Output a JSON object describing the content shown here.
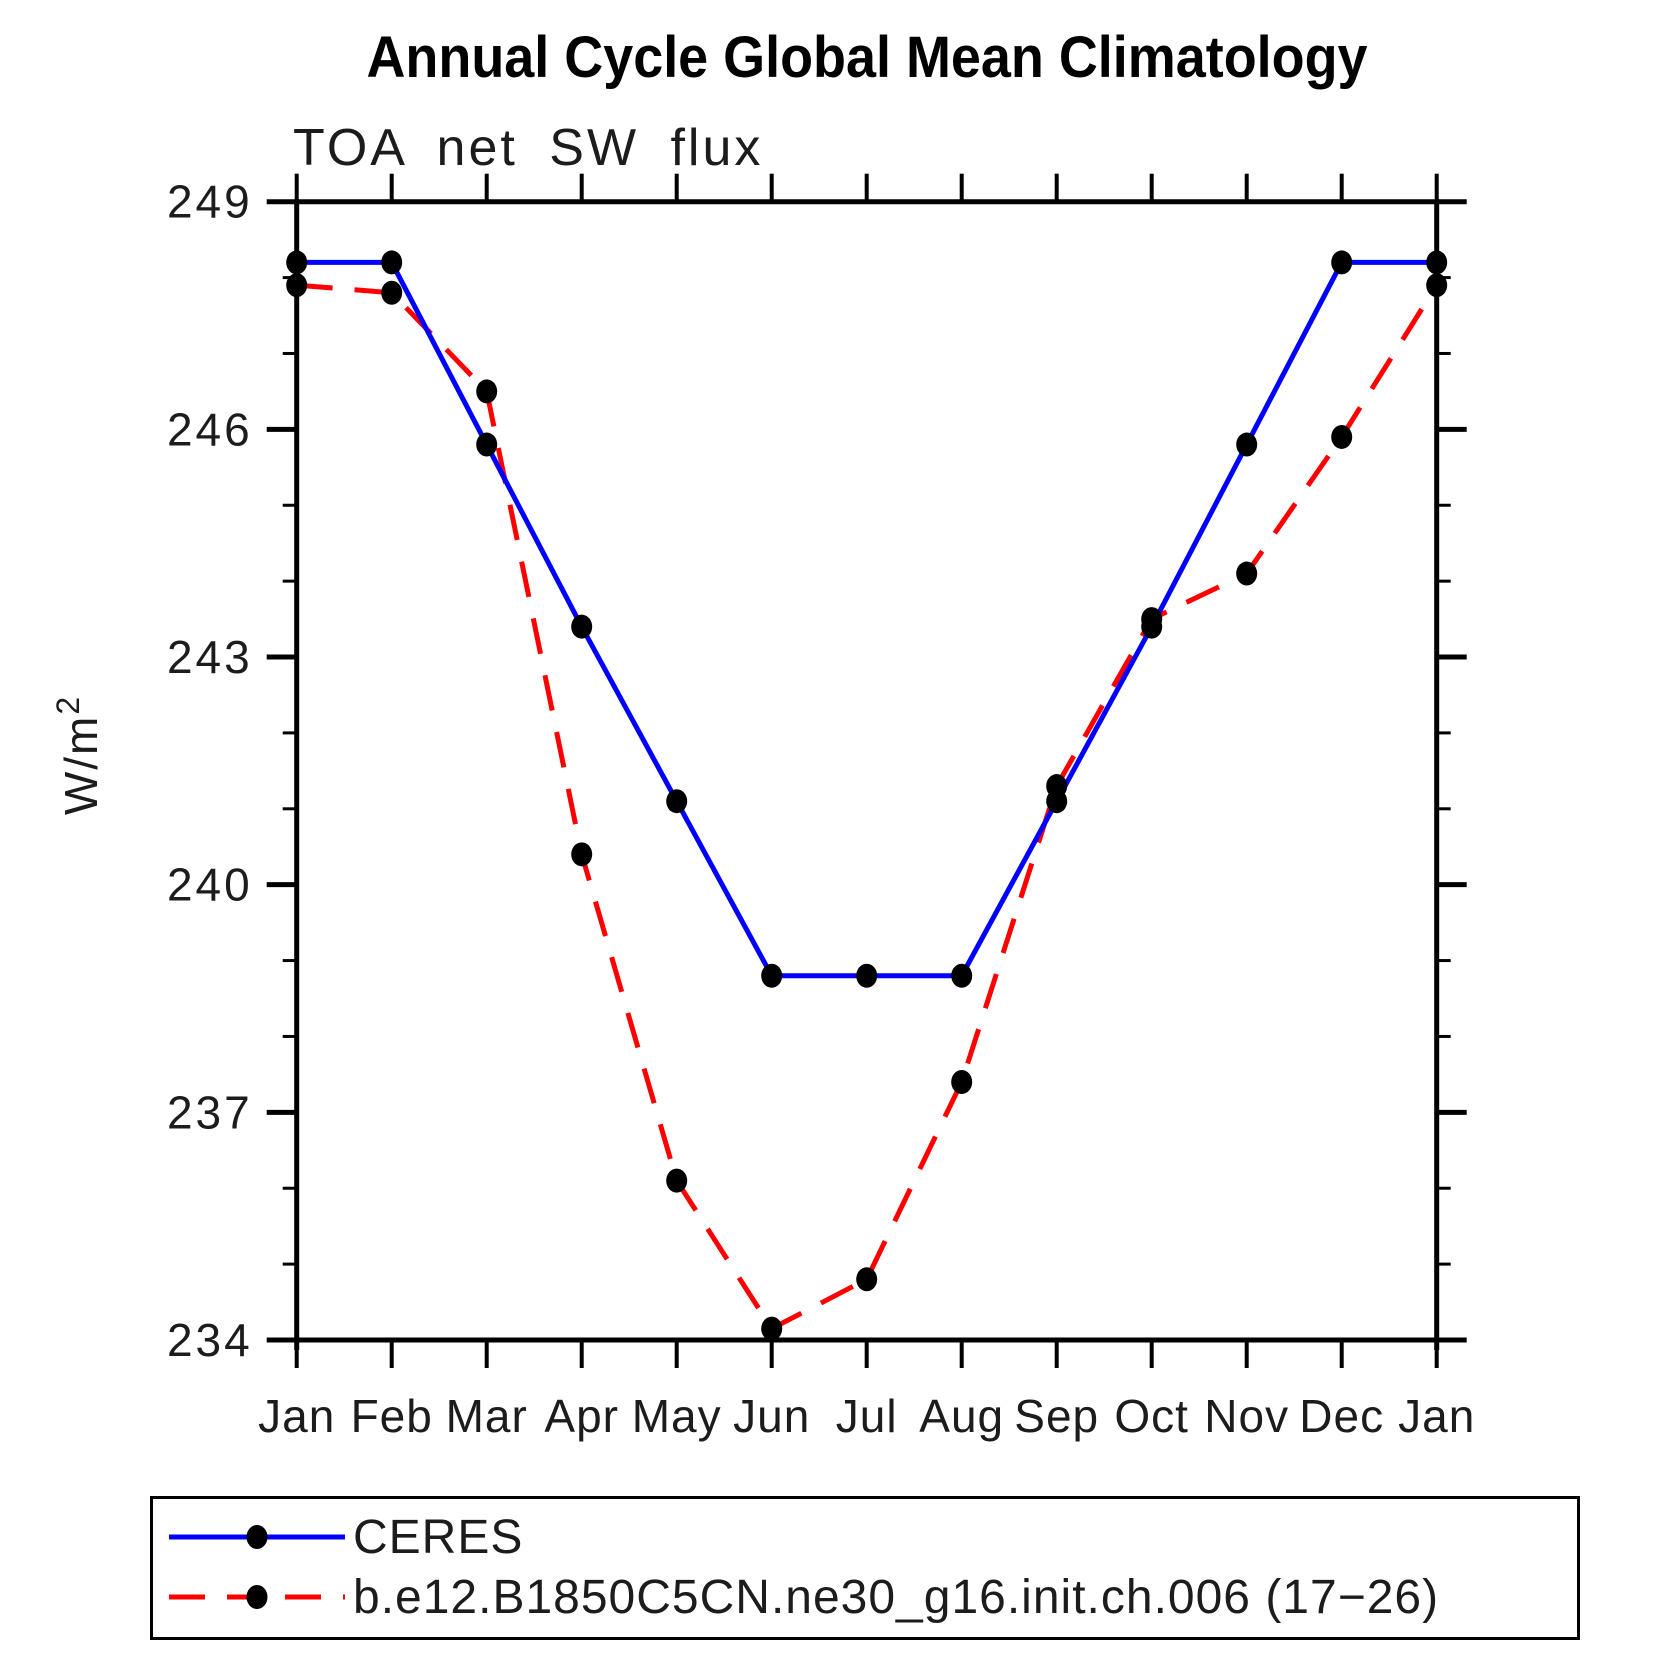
{
  "title": "Annual Cycle Global Mean Climatology",
  "subtitle": "TOA net SW flux",
  "chart_data": {
    "type": "line",
    "title": "Annual Cycle Global Mean Climatology",
    "subtitle": "TOA net SW flux",
    "categories": [
      "Jan",
      "Feb",
      "Mar",
      "Apr",
      "May",
      "Jun",
      "Jul",
      "Aug",
      "Sep",
      "Oct",
      "Nov",
      "Dec",
      "Jan"
    ],
    "ylabel_base": "W/m",
    "ylabel_sup": "2",
    "ylim": [
      234,
      249
    ],
    "yticks_major": [
      249,
      246,
      243,
      240,
      237,
      234
    ],
    "ytick_minor_step": 1,
    "grid": "off",
    "legend_position": "bottom",
    "marker_color": "#000000",
    "axis_color": "#000000",
    "series": [
      {
        "name": "CERES",
        "color": "#0000ff",
        "line_style": "solid",
        "values": [
          248.2,
          248.2,
          245.8,
          243.4,
          241.1,
          238.8,
          238.8,
          238.8,
          241.1,
          243.4,
          245.8,
          248.2,
          248.2
        ]
      },
      {
        "name": "b.e12.B1850C5CN.ne30_g16.init.ch.006 (17−26)",
        "color": "#ff0000",
        "line_style": "dashed",
        "values": [
          247.9,
          247.8,
          246.5,
          240.4,
          236.1,
          234.15,
          234.8,
          237.4,
          241.3,
          243.5,
          244.1,
          245.9,
          247.9
        ]
      }
    ]
  }
}
